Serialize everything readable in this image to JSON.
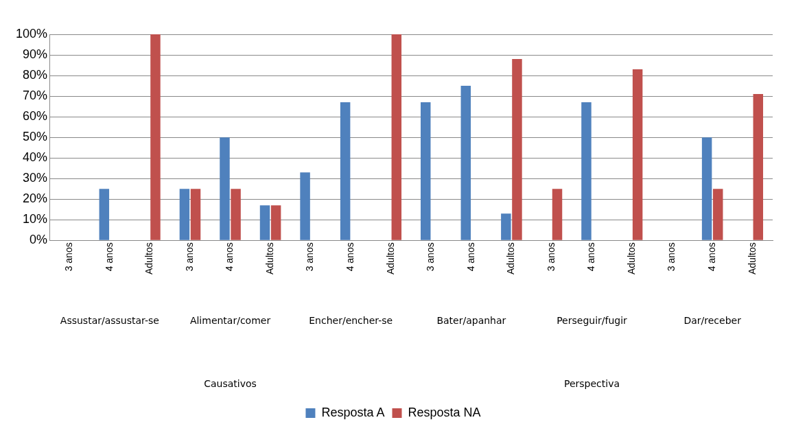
{
  "chart_data": {
    "type": "bar",
    "categories": [
      "3 anos",
      "4 anos",
      "Adultos",
      "3 anos",
      "4 anos",
      "Adultos",
      "3 anos",
      "4 anos",
      "Adultos",
      "3 anos",
      "4 anos",
      "Adultos",
      "3 anos",
      "4 anos",
      "Adultos",
      "3 anos",
      "4 anos",
      "Adultos"
    ],
    "series": [
      {
        "name": "Resposta A",
        "color": "#4f81bd",
        "values": [
          0,
          25,
          0,
          25,
          50,
          17,
          33,
          67,
          0,
          67,
          75,
          13,
          0,
          67,
          0,
          0,
          50,
          0
        ]
      },
      {
        "name": "Resposta NA",
        "color": "#c0504d",
        "values": [
          0,
          0,
          100,
          25,
          25,
          17,
          0,
          0,
          100,
          0,
          0,
          88,
          25,
          0,
          83,
          0,
          25,
          71
        ]
      }
    ],
    "ylim": [
      0,
      100
    ],
    "yticks": [
      {
        "value": 0,
        "label": "0%"
      },
      {
        "value": 10,
        "label": "10%"
      },
      {
        "value": 20,
        "label": "20%"
      },
      {
        "value": 30,
        "label": "30%"
      },
      {
        "value": 40,
        "label": "40%"
      },
      {
        "value": 50,
        "label": "50%"
      },
      {
        "value": 60,
        "label": "60%"
      },
      {
        "value": 70,
        "label": "70%"
      },
      {
        "value": 80,
        "label": "80%"
      },
      {
        "value": 90,
        "label": "90%"
      },
      {
        "value": 100,
        "label": "100%"
      }
    ],
    "grid": "y",
    "legend": "bottom",
    "annotations": [
      "Assustar/assustar-se",
      "Alimentar/comer",
      "Encher/encher-se",
      "Bater/apanhar",
      "Perseguir/fugir",
      "Dar/receber",
      "Causativos",
      "Perspectiva"
    ]
  }
}
